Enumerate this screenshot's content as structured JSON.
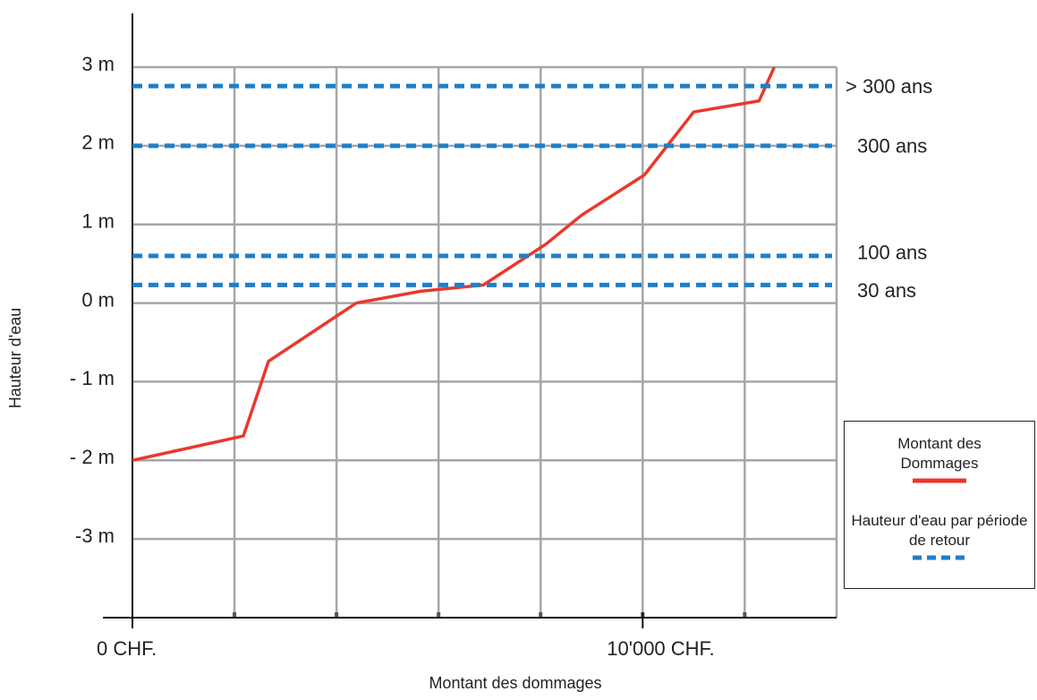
{
  "chart_data": {
    "type": "line",
    "xlabel": "Montant des dommages",
    "ylabel": "Hauteur d'eau",
    "xlim": [
      0,
      13800
    ],
    "ylim": [
      -4,
      3
    ],
    "xticks": [
      {
        "value": 0,
        "label": "0 CHF."
      },
      {
        "value": 10000,
        "label": "10'000 CHF."
      }
    ],
    "xgrid": [
      2000,
      4000,
      6000,
      8000,
      10000,
      12000
    ],
    "yticks": [
      {
        "value": 3,
        "label": "3 m"
      },
      {
        "value": 2,
        "label": "2 m"
      },
      {
        "value": 1,
        "label": "1 m"
      },
      {
        "value": 0,
        "label": "0 m"
      },
      {
        "value": -1,
        "label": "- 1 m"
      },
      {
        "value": -2,
        "label": "- 2 m"
      },
      {
        "value": -3,
        "label": "-3 m"
      }
    ],
    "grid": true,
    "legend": "lower right",
    "series": [
      {
        "name": "Montant des Dommages",
        "color": "#e8392b",
        "x": [
          0,
          2175,
          2667,
          4386,
          5649,
          6877,
          8105,
          8807,
          10035,
          11000,
          12281,
          12579
        ],
        "values": [
          -2,
          -1.69,
          -0.74,
          0,
          0.15,
          0.23,
          0.75,
          1.12,
          1.63,
          2.43,
          2.57,
          3
        ]
      },
      {
        "name": "Hauteur d'eau par période de retour",
        "color": "#1f7fc8",
        "style": "dashed",
        "values": [
          2.76,
          2,
          0.6,
          0.23
        ],
        "labels": [
          "> 300 ans",
          "300 ans",
          "100 ans",
          "30 ans"
        ]
      }
    ]
  }
}
